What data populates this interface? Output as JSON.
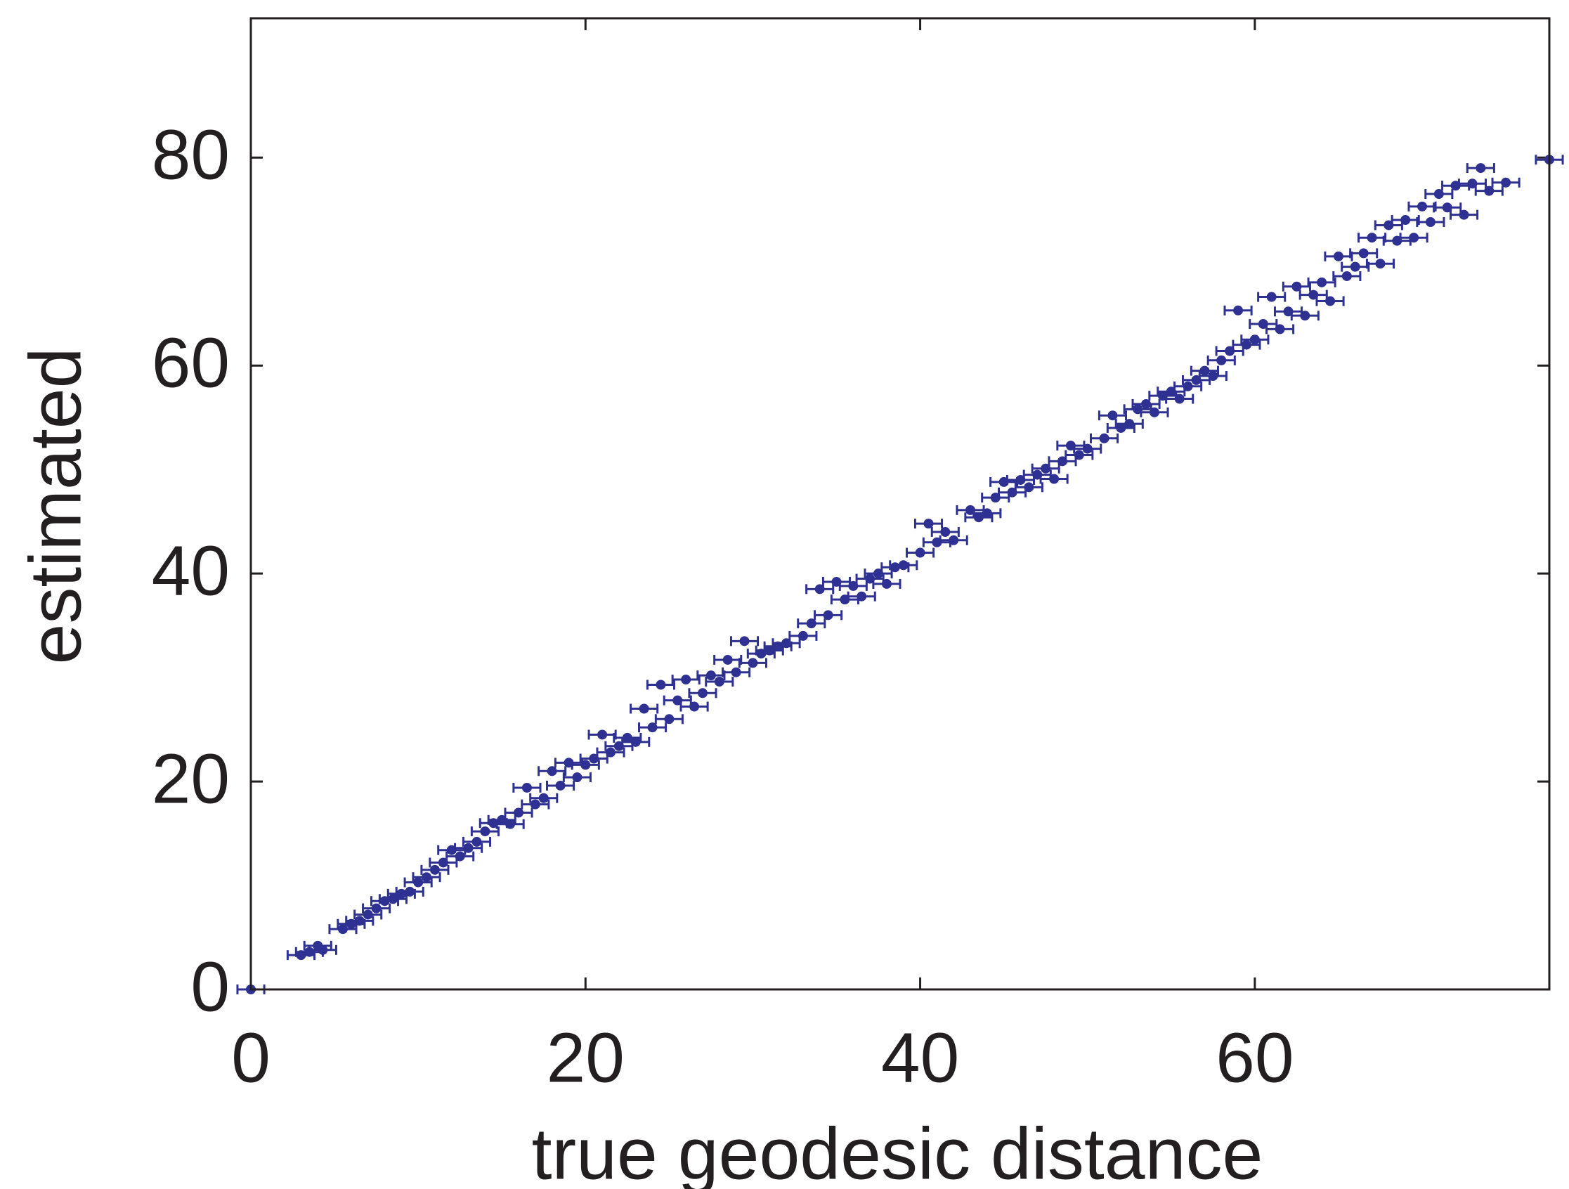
{
  "chart_data": {
    "type": "scatter",
    "xlabel": "true geodesic distance",
    "ylabel": "estimated",
    "color": "#2e3192",
    "xlim": [
      0,
      77.6
    ],
    "ylim": [
      0,
      93.4
    ],
    "xticks": [
      0,
      20,
      40,
      60
    ],
    "yticks": [
      0,
      20,
      40,
      60,
      80
    ],
    "box": true,
    "xerr": 0.8,
    "x": [
      0,
      3,
      3.5,
      4,
      4.3,
      5.5,
      6,
      6.5,
      7,
      7.5,
      8,
      8.5,
      9,
      9.5,
      10,
      10.5,
      11,
      11.5,
      12,
      12.5,
      13,
      13.5,
      14,
      14.5,
      15,
      15.5,
      16,
      16.5,
      17,
      17.5,
      18,
      18.5,
      19,
      19.5,
      20,
      20.5,
      21,
      21.5,
      22,
      22.5,
      23,
      23.5,
      24,
      24.5,
      25,
      25.5,
      26,
      26.5,
      27,
      27.5,
      28,
      28.5,
      29,
      29.5,
      30,
      30.5,
      31,
      31.5,
      32,
      33,
      33.5,
      34,
      34.5,
      35,
      35.5,
      36,
      36.5,
      37,
      37.5,
      38,
      38.5,
      39,
      40,
      40.5,
      41,
      41.5,
      42,
      43,
      43.5,
      44,
      44.5,
      45,
      45.5,
      46,
      46.5,
      47,
      47.5,
      48,
      48.5,
      49,
      49.5,
      50,
      51,
      51.5,
      52,
      52.5,
      53,
      53.5,
      54,
      54.5,
      55,
      55.5,
      56,
      56.5,
      57,
      57.5,
      58,
      58.5,
      59,
      59.5,
      60,
      60.5,
      61,
      61.5,
      62,
      62.5,
      63,
      63.5,
      64,
      64.5,
      65,
      65.5,
      66,
      66.5,
      67,
      67.5,
      68,
      68.5,
      69,
      69.5,
      70,
      70.5,
      71,
      71.5,
      72,
      72.5,
      73,
      73.5,
      74,
      75,
      77.6
    ],
    "values": [
      0,
      3.3,
      3.6,
      4.2,
      3.8,
      5.8,
      6.3,
      6.6,
      7.2,
      7.8,
      8.5,
      8.7,
      9.2,
      9.4,
      10.3,
      10.8,
      11.5,
      12.2,
      13.4,
      12.8,
      13.6,
      14.2,
      15.2,
      16,
      16.3,
      15.9,
      17,
      19.4,
      17.8,
      18.4,
      21,
      19.6,
      21.8,
      20.4,
      21.6,
      22.2,
      24.5,
      22.8,
      23.4,
      24.2,
      23.8,
      27,
      25.2,
      29.3,
      26,
      27.8,
      29.8,
      27.2,
      28.5,
      30.2,
      29.6,
      31.7,
      30.5,
      33.5,
      31.4,
      32.3,
      32.6,
      33,
      33.3,
      34,
      35.2,
      38.5,
      36,
      39.2,
      37.5,
      38.8,
      37.8,
      39.5,
      40,
      39,
      40.6,
      40.8,
      42,
      44.8,
      43,
      44,
      43.2,
      46.1,
      45.4,
      45.8,
      47.3,
      48.8,
      47.8,
      49,
      48.3,
      49.5,
      50.1,
      49.1,
      50.8,
      52.3,
      51.4,
      52,
      53,
      55.2,
      54,
      54.4,
      55.8,
      56.3,
      55.5,
      57.1,
      57.5,
      56.8,
      58,
      58.6,
      59.5,
      59,
      60.5,
      61.4,
      65.3,
      62,
      62.5,
      64,
      66.6,
      63.5,
      65.2,
      67.6,
      64.8,
      66.8,
      68,
      66.2,
      70.5,
      68.6,
      69.5,
      70.8,
      72.3,
      69.8,
      73.5,
      72,
      74,
      72.3,
      75.3,
      73.8,
      76.5,
      75.2,
      77.3,
      74.5,
      77.5,
      79,
      76.8,
      77.6,
      79.8
    ]
  }
}
